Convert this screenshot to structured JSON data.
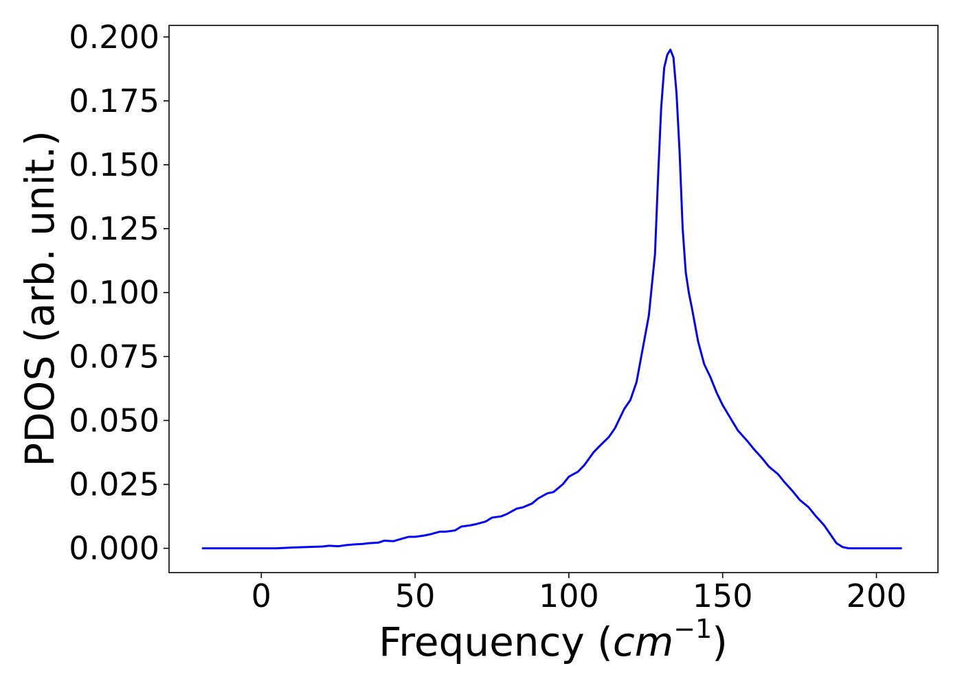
{
  "chart_data": {
    "type": "line",
    "xlabel": "Frequency (cm⁻¹)",
    "xlabel_parts": {
      "prefix": "Frequency (",
      "unit": "cm",
      "exponent": "−1",
      "suffix": ")"
    },
    "ylabel": "PDOS (arb. unit.)",
    "xlim": [
      -30,
      220
    ],
    "ylim": [
      -0.0095,
      0.2045
    ],
    "x_ticks": [
      0,
      50,
      100,
      150,
      200
    ],
    "x_tick_labels": [
      "0",
      "50",
      "100",
      "150",
      "200"
    ],
    "y_ticks": [
      0,
      0.025,
      0.05,
      0.075,
      0.1,
      0.125,
      0.15,
      0.175,
      0.2
    ],
    "y_tick_labels": [
      "0.000",
      "0.025",
      "0.050",
      "0.075",
      "0.100",
      "0.125",
      "0.150",
      "0.175",
      "0.200"
    ],
    "grid": false,
    "series": [
      {
        "color": "#0000ff",
        "x": [
          -19,
          0,
          5,
          10,
          15,
          20,
          22,
          25,
          28,
          30,
          33,
          35,
          38,
          40,
          43,
          45,
          48,
          50,
          53,
          55,
          58,
          60,
          63,
          65,
          68,
          70,
          73,
          75,
          78,
          80,
          83,
          85,
          88,
          90,
          93,
          95,
          98,
          100,
          103,
          105,
          108,
          110,
          113,
          115,
          118,
          120,
          122,
          124,
          126,
          128,
          129,
          130,
          131,
          132,
          133,
          134,
          135,
          136,
          137,
          138,
          139,
          140,
          142,
          144,
          146,
          148,
          150,
          152,
          155,
          158,
          160,
          163,
          165,
          168,
          170,
          173,
          175,
          178,
          180,
          183,
          185,
          187,
          189,
          191,
          192,
          193,
          195,
          200,
          208
        ],
        "y": [
          0,
          0,
          0,
          0.0003,
          0.0005,
          0.0007,
          0.001,
          0.0008,
          0.0013,
          0.0015,
          0.0017,
          0.002,
          0.0022,
          0.003,
          0.0028,
          0.0035,
          0.0045,
          0.0045,
          0.005,
          0.0055,
          0.0065,
          0.0065,
          0.007,
          0.0085,
          0.009,
          0.0095,
          0.0105,
          0.012,
          0.0125,
          0.0135,
          0.0155,
          0.016,
          0.0175,
          0.0195,
          0.0215,
          0.022,
          0.025,
          0.028,
          0.03,
          0.0325,
          0.0375,
          0.04,
          0.0435,
          0.047,
          0.0545,
          0.058,
          0.065,
          0.078,
          0.091,
          0.115,
          0.145,
          0.172,
          0.188,
          0.193,
          0.195,
          0.192,
          0.178,
          0.155,
          0.125,
          0.108,
          0.1,
          0.094,
          0.081,
          0.072,
          0.067,
          0.061,
          0.056,
          0.052,
          0.046,
          0.042,
          0.039,
          0.035,
          0.032,
          0.029,
          0.026,
          0.022,
          0.019,
          0.016,
          0.013,
          0.009,
          0.0055,
          0.002,
          0.0005,
          0,
          0,
          0,
          0,
          0,
          0
        ]
      }
    ]
  }
}
